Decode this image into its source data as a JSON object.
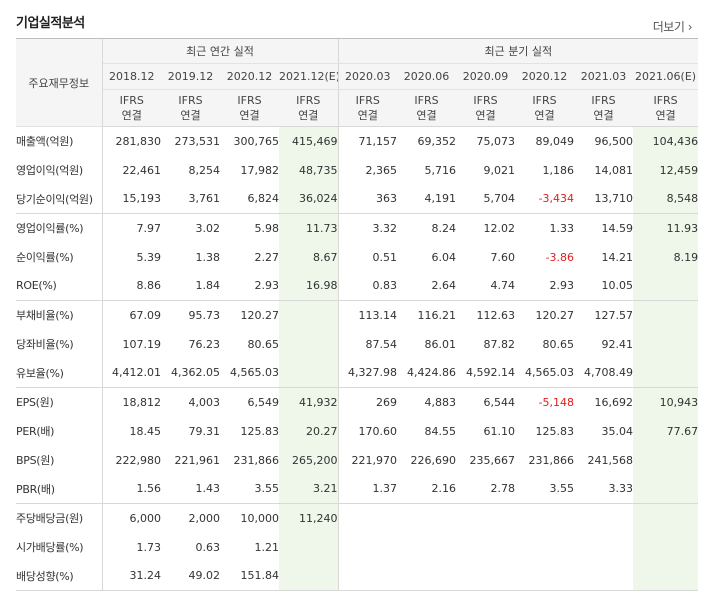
{
  "section_title": "기업실적분석",
  "more_label": "더보기",
  "header": {
    "label_col": "주요재무정보",
    "annual_group": "최근 연간 실적",
    "quarter_group": "최근 분기 실적",
    "columns": [
      {
        "period": "2018.12",
        "basis": "IFRS",
        "scope": "연결",
        "estimate": false
      },
      {
        "period": "2019.12",
        "basis": "IFRS",
        "scope": "연결",
        "estimate": false
      },
      {
        "period": "2020.12",
        "basis": "IFRS",
        "scope": "연결",
        "estimate": false
      },
      {
        "period": "2021.12(E)",
        "basis": "IFRS",
        "scope": "연결",
        "estimate": true
      },
      {
        "period": "2020.03",
        "basis": "IFRS",
        "scope": "연결",
        "estimate": false
      },
      {
        "period": "2020.06",
        "basis": "IFRS",
        "scope": "연결",
        "estimate": false
      },
      {
        "period": "2020.09",
        "basis": "IFRS",
        "scope": "연결",
        "estimate": false
      },
      {
        "period": "2020.12",
        "basis": "IFRS",
        "scope": "연결",
        "estimate": false
      },
      {
        "period": "2021.03",
        "basis": "IFRS",
        "scope": "연결",
        "estimate": false
      },
      {
        "period": "2021.06(E)",
        "basis": "IFRS",
        "scope": "연결",
        "estimate": true
      }
    ]
  },
  "rows": [
    {
      "label": "매출액(억원)",
      "values": [
        "281,830",
        "273,531",
        "300,765",
        "415,469",
        "71,157",
        "69,352",
        "75,073",
        "89,049",
        "96,500",
        "104,436"
      ]
    },
    {
      "label": "영업이익(억원)",
      "values": [
        "22,461",
        "8,254",
        "17,982",
        "48,735",
        "2,365",
        "5,716",
        "9,021",
        "1,186",
        "14,081",
        "12,459"
      ]
    },
    {
      "label": "당기순이익(억원)",
      "values": [
        "15,193",
        "3,761",
        "6,824",
        "36,024",
        "363",
        "4,191",
        "5,704",
        "-3,434",
        "13,710",
        "8,548"
      ]
    },
    {
      "label": "영업이익률(%)",
      "values": [
        "7.97",
        "3.02",
        "5.98",
        "11.73",
        "3.32",
        "8.24",
        "12.02",
        "1.33",
        "14.59",
        "11.93"
      ]
    },
    {
      "label": "순이익률(%)",
      "values": [
        "5.39",
        "1.38",
        "2.27",
        "8.67",
        "0.51",
        "6.04",
        "7.60",
        "-3.86",
        "14.21",
        "8.19"
      ]
    },
    {
      "label": "ROE(%)",
      "values": [
        "8.86",
        "1.84",
        "2.93",
        "16.98",
        "0.83",
        "2.64",
        "4.74",
        "2.93",
        "10.05",
        ""
      ]
    },
    {
      "label": "부채비율(%)",
      "values": [
        "67.09",
        "95.73",
        "120.27",
        "",
        "113.14",
        "116.21",
        "112.63",
        "120.27",
        "127.57",
        ""
      ]
    },
    {
      "label": "당좌비율(%)",
      "values": [
        "107.19",
        "76.23",
        "80.65",
        "",
        "87.54",
        "86.01",
        "87.82",
        "80.65",
        "92.41",
        ""
      ]
    },
    {
      "label": "유보율(%)",
      "values": [
        "4,412.01",
        "4,362.05",
        "4,565.03",
        "",
        "4,327.98",
        "4,424.86",
        "4,592.14",
        "4,565.03",
        "4,708.49",
        ""
      ]
    },
    {
      "label": "EPS(원)",
      "values": [
        "18,812",
        "4,003",
        "6,549",
        "41,932",
        "269",
        "4,883",
        "6,544",
        "-5,148",
        "16,692",
        "10,943"
      ]
    },
    {
      "label": "PER(배)",
      "values": [
        "18.45",
        "79.31",
        "125.83",
        "20.27",
        "170.60",
        "84.55",
        "61.10",
        "125.83",
        "35.04",
        "77.67"
      ]
    },
    {
      "label": "BPS(원)",
      "values": [
        "222,980",
        "221,961",
        "231,866",
        "265,200",
        "221,970",
        "226,690",
        "235,667",
        "231,866",
        "241,568",
        ""
      ]
    },
    {
      "label": "PBR(배)",
      "values": [
        "1.56",
        "1.43",
        "3.55",
        "3.21",
        "1.37",
        "2.16",
        "2.78",
        "3.55",
        "3.33",
        ""
      ]
    },
    {
      "label": "주당배당금(원)",
      "values": [
        "6,000",
        "2,000",
        "10,000",
        "11,240",
        "",
        "",
        "",
        "",
        "",
        ""
      ]
    },
    {
      "label": "시가배당률(%)",
      "values": [
        "1.73",
        "0.63",
        "1.21",
        "",
        "",
        "",
        "",
        "",
        "",
        ""
      ]
    },
    {
      "label": "배당성향(%)",
      "values": [
        "31.24",
        "49.02",
        "151.84",
        "",
        "",
        "",
        "",
        "",
        "",
        ""
      ]
    }
  ],
  "colors": {
    "negative": "#e02020",
    "basis_text": "#ff6600",
    "estimate_bg": "#eef7ea",
    "header_bg": "#f5f5f5"
  }
}
